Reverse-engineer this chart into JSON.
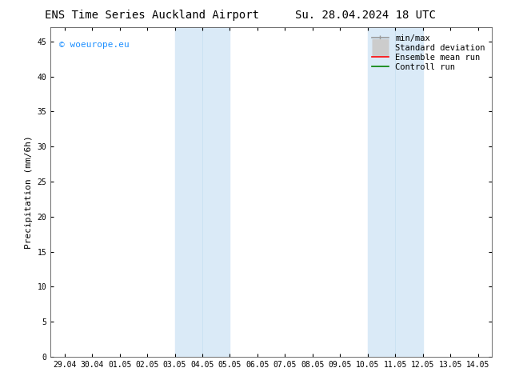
{
  "title_left": "ENS Time Series Auckland Airport",
  "title_right": "Su. 28.04.2024 18 UTC",
  "ylabel": "Precipitation (mm/6h)",
  "watermark": "© woeurope.eu",
  "watermark_color": "#1e90ff",
  "x_tick_labels": [
    "29.04",
    "30.04",
    "01.05",
    "02.05",
    "03.05",
    "04.05",
    "05.05",
    "06.05",
    "07.05",
    "08.05",
    "09.05",
    "10.05",
    "11.05",
    "12.05",
    "13.05",
    "14.05"
  ],
  "x_tick_positions": [
    0,
    1,
    2,
    3,
    4,
    5,
    6,
    7,
    8,
    9,
    10,
    11,
    12,
    13,
    14,
    15
  ],
  "ylim": [
    0,
    47
  ],
  "yticks": [
    0,
    5,
    10,
    15,
    20,
    25,
    30,
    35,
    40,
    45
  ],
  "shaded_regions": [
    [
      4.0,
      5.0
    ],
    [
      5.0,
      6.0
    ],
    [
      11.0,
      12.0
    ],
    [
      12.0,
      13.0
    ]
  ],
  "shade_color": "#daeaf7",
  "background_color": "#ffffff",
  "legend_items": [
    {
      "label": "min/max",
      "color": "#999999",
      "lw": 1.2,
      "style": "line_with_caps"
    },
    {
      "label": "Standard deviation",
      "color": "#cccccc",
      "lw": 5,
      "style": "thick"
    },
    {
      "label": "Ensemble mean run",
      "color": "#ff0000",
      "lw": 1.2,
      "style": "line"
    },
    {
      "label": "Controll run",
      "color": "#008000",
      "lw": 1.2,
      "style": "line"
    }
  ],
  "font_size_title": 10,
  "font_size_ticks": 7,
  "font_size_legend": 7.5,
  "font_size_ylabel": 8,
  "font_size_watermark": 8
}
